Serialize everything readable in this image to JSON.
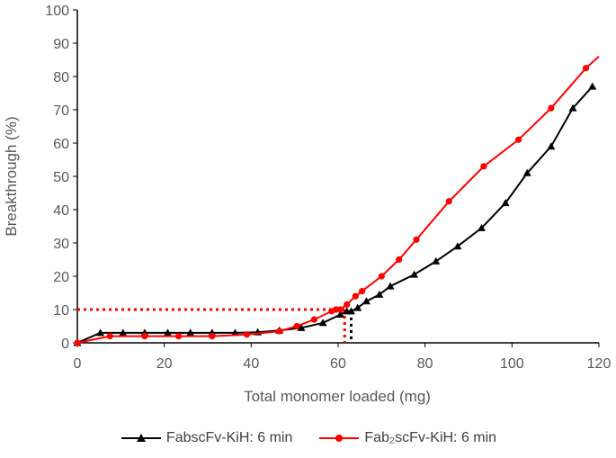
{
  "chart_data": {
    "type": "line",
    "xlabel": "Total monomer loaded (mg)",
    "ylabel": "Breakthrough (%)",
    "xlim": [
      0,
      120
    ],
    "ylim": [
      0,
      100
    ],
    "xticks": [
      0,
      20,
      40,
      60,
      80,
      100,
      120
    ],
    "yticks": [
      0,
      10,
      20,
      30,
      40,
      50,
      60,
      70,
      80,
      90,
      100
    ],
    "grid": false,
    "legend_position": "bottom",
    "series": [
      {
        "name": "FabscFv-KiH: 6 min",
        "color": "#000000",
        "marker": "triangle",
        "x": [
          0,
          5.3,
          10.5,
          15.5,
          20.8,
          26.0,
          31.0,
          36.3,
          41.5,
          46.5,
          51.5,
          56.5,
          60.5,
          62.0,
          63.0,
          64.5,
          66.5,
          69.5,
          72.0,
          77.5,
          82.5,
          87.5,
          93.0,
          98.5,
          103.5,
          109.0,
          114.0,
          118.5
        ],
        "y": [
          0,
          3,
          3,
          3,
          3,
          3,
          3,
          3,
          3.2,
          3.7,
          4.5,
          6.0,
          8.5,
          9.5,
          9.5,
          10.5,
          12.5,
          14.5,
          17.0,
          20.5,
          24.5,
          29.0,
          34.5,
          42.0,
          51.0,
          59.0,
          70.5,
          77.0
        ]
      },
      {
        "name": "Fab₂scFv-KiH: 6 min",
        "color": "#ff0000",
        "marker": "circle",
        "x": [
          0,
          7.5,
          15.5,
          23.3,
          31.0,
          39.0,
          46.5,
          50.5,
          54.5,
          58.5,
          59.5,
          60.5,
          62.0,
          64.0,
          65.5,
          70.0,
          74.0,
          78.0,
          85.5,
          93.5,
          101.5,
          109.0,
          117.0
        ],
        "y": [
          0,
          2,
          2,
          2,
          2,
          2.5,
          3.5,
          5,
          7,
          9.5,
          10,
          10,
          11.5,
          14,
          15.5,
          20,
          25,
          31,
          42.5,
          53,
          61,
          70.5,
          82.5
        ],
        "line_x": [
          0,
          7.5,
          15.5,
          23.3,
          31.0,
          39.0,
          46.5,
          50.5,
          54.5,
          58.5,
          60.5,
          62.0,
          64.0,
          65.5,
          70.0,
          74.0,
          78.0,
          85.5,
          93.5,
          101.5,
          109.0,
          117.0,
          120
        ],
        "line_y": [
          0,
          2,
          2,
          2,
          2,
          2.5,
          3.5,
          5,
          7,
          9.5,
          10,
          11.5,
          14,
          15.5,
          20,
          25,
          31,
          42.5,
          53,
          61,
          70.5,
          82.5,
          86
        ]
      }
    ],
    "reference_lines": [
      {
        "color": "#ff0000",
        "x": [
          0,
          61.5
        ],
        "y": [
          10,
          10
        ]
      },
      {
        "color": "#ff0000",
        "x": [
          61.5,
          61.5
        ],
        "y": [
          10,
          0
        ]
      },
      {
        "color": "#000000",
        "x": [
          63.0,
          63.0
        ],
        "y": [
          9.5,
          0
        ]
      }
    ]
  }
}
